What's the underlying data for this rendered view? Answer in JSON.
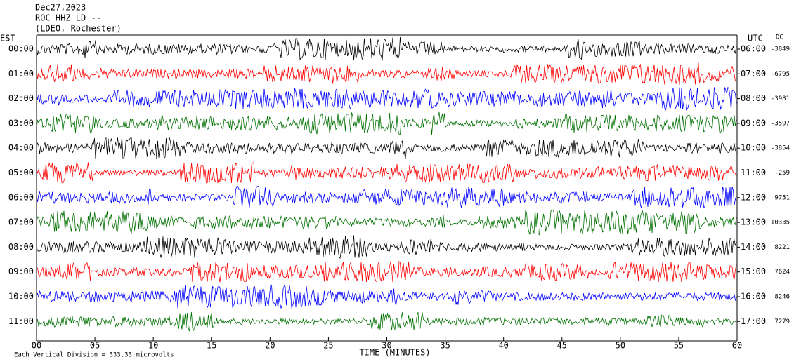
{
  "header": {
    "date": "Dec27,2023",
    "station": "ROC HHZ LD --",
    "network": "(LDEO, Rochester)"
  },
  "left_label": "EST",
  "right_label": "UTC",
  "dc_label": "DC",
  "rows": [
    {
      "est": "00:00",
      "utc": "06:00",
      "dc": "-3849",
      "color": "#000000"
    },
    {
      "est": "01:00",
      "utc": "07:00",
      "dc": "-6795",
      "color": "#ff0000"
    },
    {
      "est": "02:00",
      "utc": "08:00",
      "dc": "-3981",
      "color": "#0000ff"
    },
    {
      "est": "03:00",
      "utc": "09:00",
      "dc": "-3597",
      "color": "#007000"
    },
    {
      "est": "04:00",
      "utc": "10:00",
      "dc": "-3854",
      "color": "#000000"
    },
    {
      "est": "05:00",
      "utc": "11:00",
      "dc": "-259",
      "color": "#ff0000"
    },
    {
      "est": "06:00",
      "utc": "12:00",
      "dc": "9751",
      "color": "#0000ff"
    },
    {
      "est": "07:00",
      "utc": "13:00",
      "dc": "10335",
      "color": "#007000"
    },
    {
      "est": "08:00",
      "utc": "14:00",
      "dc": "8221",
      "color": "#000000"
    },
    {
      "est": "09:00",
      "utc": "15:00",
      "dc": "7624",
      "color": "#ff0000"
    },
    {
      "est": "10:00",
      "utc": "16:00",
      "dc": "8246",
      "color": "#0000ff"
    },
    {
      "est": "11:00",
      "utc": "17:00",
      "dc": "7279",
      "color": "#007000"
    }
  ],
  "x_axis": {
    "ticks": [
      "00",
      "05",
      "10",
      "15",
      "20",
      "25",
      "30",
      "35",
      "40",
      "45",
      "50",
      "55",
      "60"
    ],
    "title": "TIME (MINUTES)"
  },
  "footer": "Each Vertical Division =  333.33 microvolts"
}
